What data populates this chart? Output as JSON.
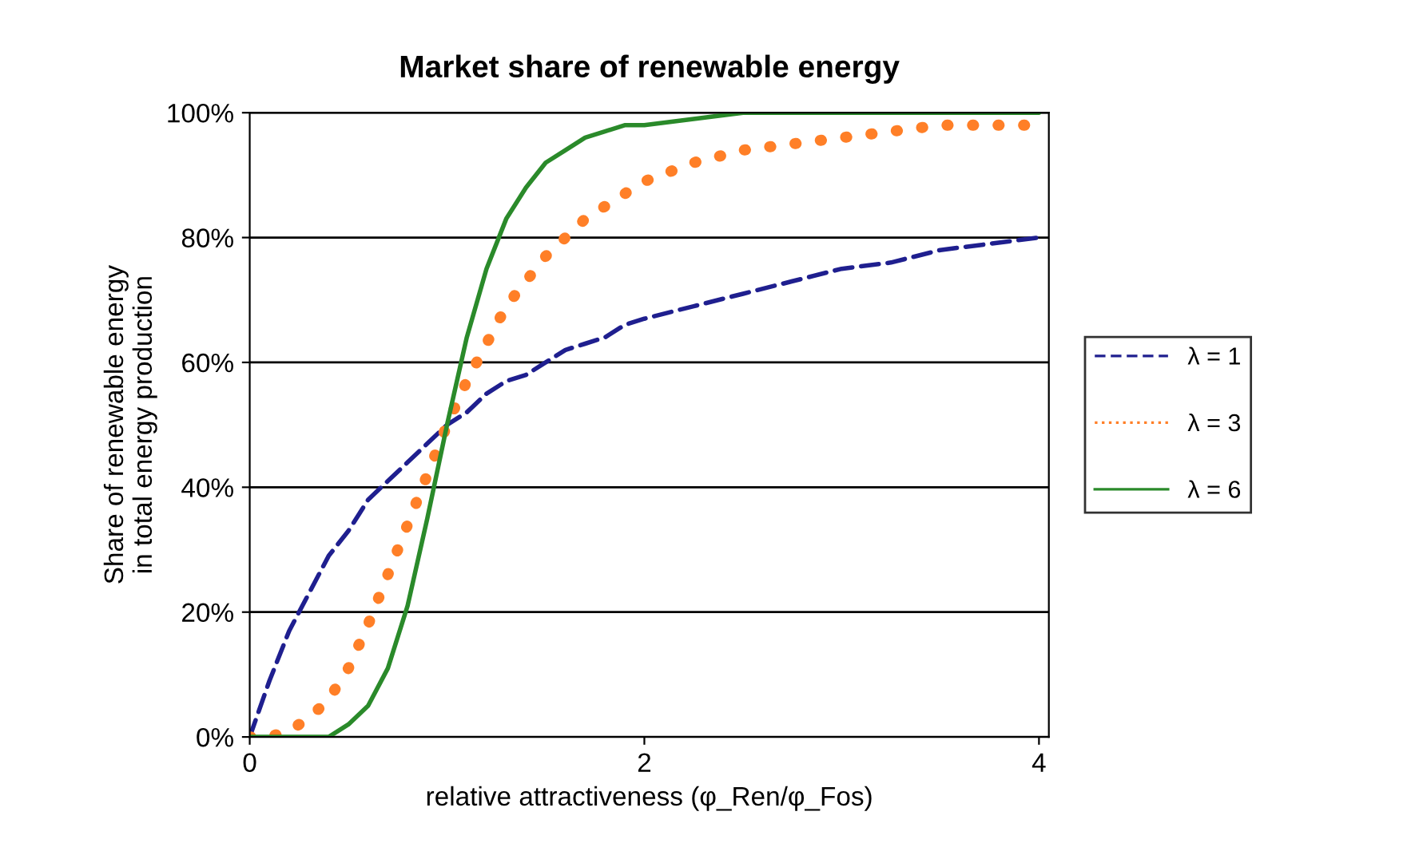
{
  "chart_data": {
    "type": "line",
    "title": "Market share of renewable energy",
    "xlabel": "relative attractiveness (φ_Ren/φ_Fos)",
    "ylabel": "Share of renewable energy\nin total energy production",
    "x": [
      0,
      0.1,
      0.2,
      0.3,
      0.4,
      0.5,
      0.6,
      0.7,
      0.8,
      0.9,
      1,
      1.1,
      1.2,
      1.3,
      1.4,
      1.5,
      1.6,
      1.7,
      1.8,
      1.9,
      2,
      2.25,
      2.5,
      2.75,
      3,
      3.25,
      3.5,
      3.75,
      4
    ],
    "series": [
      {
        "name": "λ = 1",
        "color": "#1f1f8f",
        "line_style": "dashed",
        "values": [
          0,
          9,
          17,
          23,
          29,
          33,
          38,
          41,
          44,
          47,
          50,
          52,
          55,
          57,
          58,
          60,
          62,
          63,
          64,
          66,
          67,
          69,
          71,
          73,
          75,
          76,
          78,
          79,
          80
        ]
      },
      {
        "name": "λ = 3",
        "color": "#ff7f27",
        "line_style": "dotted",
        "values": [
          0,
          0,
          1,
          3,
          6,
          11,
          18,
          26,
          34,
          42,
          50,
          57,
          63,
          69,
          73,
          77,
          80,
          83,
          85,
          87,
          89,
          92,
          94,
          95,
          96,
          97,
          98,
          98,
          98
        ]
      },
      {
        "name": "λ = 6",
        "color": "#2a8a2a",
        "line_style": "solid",
        "values": [
          0,
          0,
          0,
          0,
          0,
          2,
          5,
          11,
          21,
          35,
          50,
          64,
          75,
          83,
          88,
          92,
          94,
          96,
          97,
          98,
          98,
          99,
          100,
          100,
          100,
          100,
          100,
          100,
          100
        ]
      }
    ],
    "xlim": [
      0,
      4.05
    ],
    "xticks": [
      0,
      2,
      4
    ],
    "ylim": [
      0,
      100
    ],
    "yticks": [
      {
        "value": 0,
        "label": "0%"
      },
      {
        "value": 20,
        "label": "20%"
      },
      {
        "value": 40,
        "label": "40%"
      },
      {
        "value": 60,
        "label": "60%"
      },
      {
        "value": 80,
        "label": "80%"
      },
      {
        "value": 100,
        "label": "100%"
      }
    ],
    "grid": "y",
    "legend": "right",
    "marker": "none"
  }
}
